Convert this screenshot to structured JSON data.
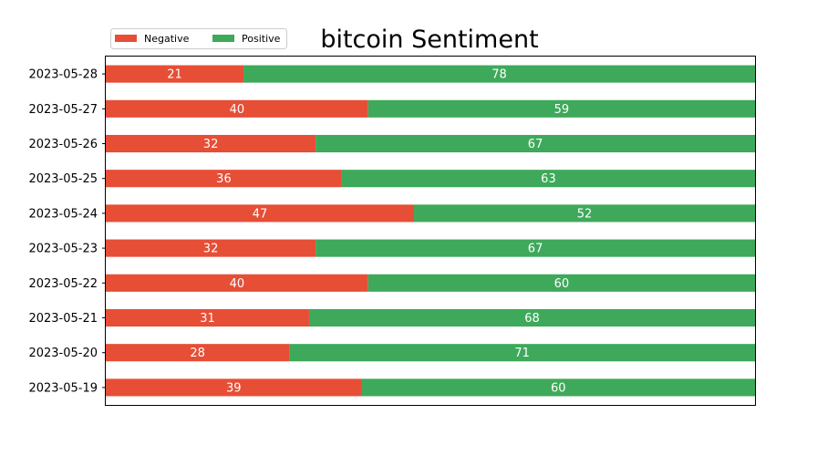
{
  "chart_data": {
    "type": "bar",
    "orientation": "horizontal",
    "stacked": true,
    "title": "bitcoin Sentiment",
    "xlabel": "",
    "ylabel": "",
    "categories": [
      "2023-05-28",
      "2023-05-27",
      "2023-05-26",
      "2023-05-25",
      "2023-05-24",
      "2023-05-23",
      "2023-05-22",
      "2023-05-21",
      "2023-05-20",
      "2023-05-19"
    ],
    "series": [
      {
        "name": "Negative",
        "color": "#e64e36",
        "values": [
          21,
          40,
          32,
          36,
          47,
          32,
          40,
          31,
          28,
          39
        ]
      },
      {
        "name": "Positive",
        "color": "#3ea95a",
        "values": [
          78,
          59,
          67,
          63,
          52,
          67,
          60,
          68,
          71,
          60
        ]
      }
    ],
    "xlim": [
      0,
      99
    ],
    "x_axis_visible": false,
    "grid": false,
    "legend_position": "top-left",
    "data_labels": true
  }
}
